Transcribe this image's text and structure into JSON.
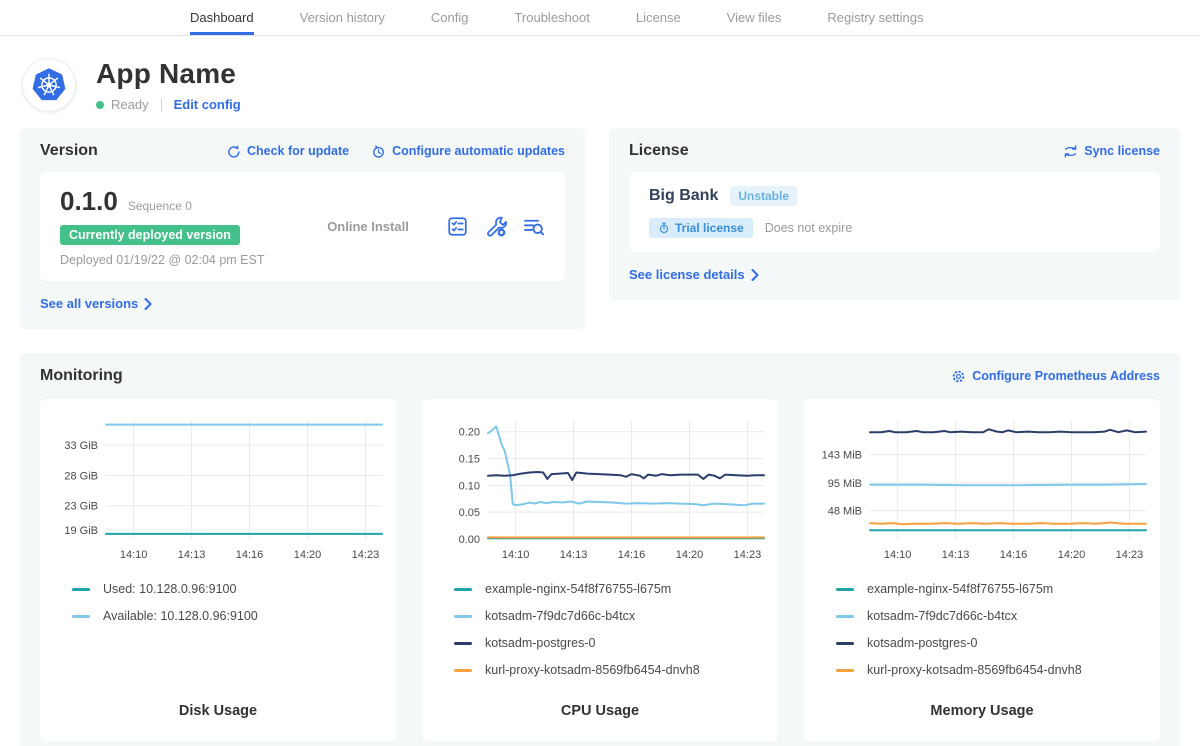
{
  "nav": {
    "tabs": [
      {
        "label": "Dashboard",
        "active": true
      },
      {
        "label": "Version history",
        "active": false
      },
      {
        "label": "Config",
        "active": false
      },
      {
        "label": "Troubleshoot",
        "active": false
      },
      {
        "label": "License",
        "active": false
      },
      {
        "label": "View files",
        "active": false
      },
      {
        "label": "Registry settings",
        "active": false
      }
    ]
  },
  "app": {
    "name": "App Name",
    "status": "Ready",
    "edit_config_label": "Edit config"
  },
  "version": {
    "title": "Version",
    "check_for_update_label": "Check for update",
    "configure_updates_label": "Configure automatic updates",
    "number": "0.1.0",
    "sequence": "Sequence 0",
    "deployed_badge": "Currently deployed version",
    "deployed_at": "Deployed 01/19/22 @ 02:04 pm EST",
    "install_type": "Online Install",
    "see_all_label": "See all versions"
  },
  "license": {
    "title": "License",
    "sync_label": "Sync license",
    "name": "Big Bank",
    "channel_badge": "Unstable",
    "trial_badge": "Trial license",
    "expiry": "Does not expire",
    "see_details_label": "See license details"
  },
  "monitoring": {
    "title": "Monitoring",
    "configure_prometheus_label": "Configure Prometheus Address"
  },
  "colors": {
    "accent_blue": "#326de6",
    "status_green": "#44c08a",
    "teal": "#1fa3ac",
    "sky": "#7fc8ea",
    "navy": "#2b3d6b",
    "orange": "#f7a13d",
    "grid": "#e8eaec",
    "tick_text": "#4a4a4a"
  },
  "chart_data": [
    {
      "type": "line",
      "name": "disk-usage",
      "title": "Disk Usage",
      "ylim": [
        17.5,
        37
      ],
      "yticks": [
        {
          "v": 19,
          "label": "19 GiB"
        },
        {
          "v": 23,
          "label": "23 GiB"
        },
        {
          "v": 28,
          "label": "28 GiB"
        },
        {
          "v": 33,
          "label": "33 GiB"
        }
      ],
      "xticks": [
        {
          "f": 0.1,
          "label": "14:10"
        },
        {
          "f": 0.31,
          "label": "14:13"
        },
        {
          "f": 0.52,
          "label": "14:16"
        },
        {
          "f": 0.73,
          "label": "14:20"
        },
        {
          "f": 0.94,
          "label": "14:23"
        }
      ],
      "series": [
        {
          "name": "Used: 10.128.0.96:9100",
          "color": "teal",
          "points": [
            [
              0,
              18.35
            ],
            [
              1,
              18.35
            ]
          ]
        },
        {
          "name": "Available: 10.128.0.96:9100",
          "color": "sky",
          "points": [
            [
              0,
              36.4
            ],
            [
              1,
              36.4
            ]
          ]
        }
      ]
    },
    {
      "type": "line",
      "name": "cpu-usage",
      "title": "CPU Usage",
      "ylim": [
        0,
        0.22
      ],
      "yticks": [
        {
          "v": 0.0,
          "label": "0.00"
        },
        {
          "v": 0.05,
          "label": "0.05"
        },
        {
          "v": 0.1,
          "label": "0.10"
        },
        {
          "v": 0.15,
          "label": "0.15"
        },
        {
          "v": 0.2,
          "label": "0.20"
        }
      ],
      "xticks": [
        {
          "f": 0.1,
          "label": "14:10"
        },
        {
          "f": 0.31,
          "label": "14:13"
        },
        {
          "f": 0.52,
          "label": "14:16"
        },
        {
          "f": 0.73,
          "label": "14:20"
        },
        {
          "f": 0.94,
          "label": "14:23"
        }
      ],
      "series": [
        {
          "name": "example-nginx-54f8f76755-l675m",
          "color": "teal",
          "points": [
            [
              0,
              0.0015
            ],
            [
              1,
              0.0015
            ]
          ]
        },
        {
          "name": "kotsadm-7f9dc7d66c-b4tcx",
          "color": "sky",
          "points": [
            [
              0,
              0.197
            ],
            [
              0.02,
              0.205
            ],
            [
              0.03,
              0.21
            ],
            [
              0.05,
              0.175
            ],
            [
              0.06,
              0.165
            ],
            [
              0.08,
              0.12
            ],
            [
              0.09,
              0.065
            ],
            [
              0.1,
              0.063
            ],
            [
              0.13,
              0.065
            ],
            [
              0.15,
              0.068
            ],
            [
              0.17,
              0.066
            ],
            [
              0.19,
              0.069
            ],
            [
              0.21,
              0.067
            ],
            [
              0.24,
              0.069
            ],
            [
              0.27,
              0.068
            ],
            [
              0.3,
              0.07
            ],
            [
              0.33,
              0.066
            ],
            [
              0.36,
              0.07
            ],
            [
              0.4,
              0.069
            ],
            [
              0.45,
              0.068
            ],
            [
              0.5,
              0.066
            ],
            [
              0.55,
              0.067
            ],
            [
              0.6,
              0.066
            ],
            [
              0.65,
              0.067
            ],
            [
              0.7,
              0.066
            ],
            [
              0.75,
              0.065
            ],
            [
              0.78,
              0.063
            ],
            [
              0.82,
              0.066
            ],
            [
              0.86,
              0.065
            ],
            [
              0.9,
              0.064
            ],
            [
              0.93,
              0.063
            ],
            [
              0.96,
              0.066
            ],
            [
              1,
              0.066
            ]
          ]
        },
        {
          "name": "kotsadm-postgres-0",
          "color": "navy",
          "points": [
            [
              0,
              0.118
            ],
            [
              0.03,
              0.119
            ],
            [
              0.06,
              0.118
            ],
            [
              0.09,
              0.119
            ],
            [
              0.12,
              0.122
            ],
            [
              0.15,
              0.124
            ],
            [
              0.18,
              0.125
            ],
            [
              0.2,
              0.124
            ],
            [
              0.215,
              0.112
            ],
            [
              0.23,
              0.121
            ],
            [
              0.26,
              0.122
            ],
            [
              0.29,
              0.123
            ],
            [
              0.305,
              0.11
            ],
            [
              0.32,
              0.124
            ],
            [
              0.36,
              0.122
            ],
            [
              0.4,
              0.121
            ],
            [
              0.44,
              0.12
            ],
            [
              0.48,
              0.119
            ],
            [
              0.5,
              0.116
            ],
            [
              0.52,
              0.121
            ],
            [
              0.55,
              0.118
            ],
            [
              0.565,
              0.113
            ],
            [
              0.58,
              0.12
            ],
            [
              0.61,
              0.118
            ],
            [
              0.63,
              0.121
            ],
            [
              0.66,
              0.119
            ],
            [
              0.7,
              0.12
            ],
            [
              0.73,
              0.12
            ],
            [
              0.76,
              0.12
            ],
            [
              0.78,
              0.112
            ],
            [
              0.8,
              0.12
            ],
            [
              0.82,
              0.118
            ],
            [
              0.84,
              0.113
            ],
            [
              0.86,
              0.12
            ],
            [
              0.9,
              0.119
            ],
            [
              0.94,
              0.118
            ],
            [
              0.97,
              0.119
            ],
            [
              1,
              0.119
            ]
          ]
        },
        {
          "name": "kurl-proxy-kotsadm-8569fb6454-dnvh8",
          "color": "orange",
          "points": [
            [
              0,
              0.003
            ],
            [
              1,
              0.003
            ]
          ]
        }
      ]
    },
    {
      "type": "line",
      "name": "memory-usage",
      "title": "Memory Usage",
      "ylim": [
        0,
        200
      ],
      "yticks": [
        {
          "v": 48,
          "label": "48 MiB"
        },
        {
          "v": 95,
          "label": "95 MiB"
        },
        {
          "v": 143,
          "label": "143 MiB"
        }
      ],
      "xticks": [
        {
          "f": 0.1,
          "label": "14:10"
        },
        {
          "f": 0.31,
          "label": "14:13"
        },
        {
          "f": 0.52,
          "label": "14:16"
        },
        {
          "f": 0.73,
          "label": "14:20"
        },
        {
          "f": 0.94,
          "label": "14:23"
        }
      ],
      "series": [
        {
          "name": "example-nginx-54f8f76755-l675m",
          "color": "teal",
          "points": [
            [
              0,
              15
            ],
            [
              1,
              15
            ]
          ]
        },
        {
          "name": "kotsadm-7f9dc7d66c-b4tcx",
          "color": "sky",
          "points": [
            [
              0,
              92
            ],
            [
              0.2,
              92
            ],
            [
              0.35,
              91
            ],
            [
              0.5,
              91
            ],
            [
              0.7,
              92
            ],
            [
              0.85,
              92
            ],
            [
              1,
              93
            ]
          ]
        },
        {
          "name": "kotsadm-postgres-0",
          "color": "navy",
          "points": [
            [
              0,
              181
            ],
            [
              0.04,
              181
            ],
            [
              0.07,
              183
            ],
            [
              0.09,
              181
            ],
            [
              0.13,
              181
            ],
            [
              0.17,
              183
            ],
            [
              0.19,
              181
            ],
            [
              0.23,
              181
            ],
            [
              0.27,
              183
            ],
            [
              0.29,
              181
            ],
            [
              0.33,
              182
            ],
            [
              0.37,
              181
            ],
            [
              0.41,
              181
            ],
            [
              0.43,
              186
            ],
            [
              0.46,
              182
            ],
            [
              0.48,
              181
            ],
            [
              0.5,
              184
            ],
            [
              0.53,
              181
            ],
            [
              0.57,
              182
            ],
            [
              0.61,
              181
            ],
            [
              0.65,
              181
            ],
            [
              0.69,
              182
            ],
            [
              0.73,
              181
            ],
            [
              0.77,
              181
            ],
            [
              0.81,
              181
            ],
            [
              0.85,
              182
            ],
            [
              0.87,
              185
            ],
            [
              0.9,
              181
            ],
            [
              0.93,
              184
            ],
            [
              0.96,
              181
            ],
            [
              1,
              182
            ]
          ]
        },
        {
          "name": "kurl-proxy-kotsadm-8569fb6454-dnvh8",
          "color": "orange",
          "points": [
            [
              0,
              27
            ],
            [
              0.04,
              26
            ],
            [
              0.08,
              27
            ],
            [
              0.12,
              25
            ],
            [
              0.16,
              26
            ],
            [
              0.22,
              26
            ],
            [
              0.27,
              27
            ],
            [
              0.32,
              26
            ],
            [
              0.37,
              27
            ],
            [
              0.42,
              26
            ],
            [
              0.47,
              27
            ],
            [
              0.52,
              26
            ],
            [
              0.57,
              26
            ],
            [
              0.62,
              27
            ],
            [
              0.67,
              26
            ],
            [
              0.72,
              26
            ],
            [
              0.77,
              27
            ],
            [
              0.82,
              26
            ],
            [
              0.87,
              28
            ],
            [
              0.92,
              26
            ],
            [
              1,
              26
            ]
          ]
        }
      ]
    }
  ]
}
